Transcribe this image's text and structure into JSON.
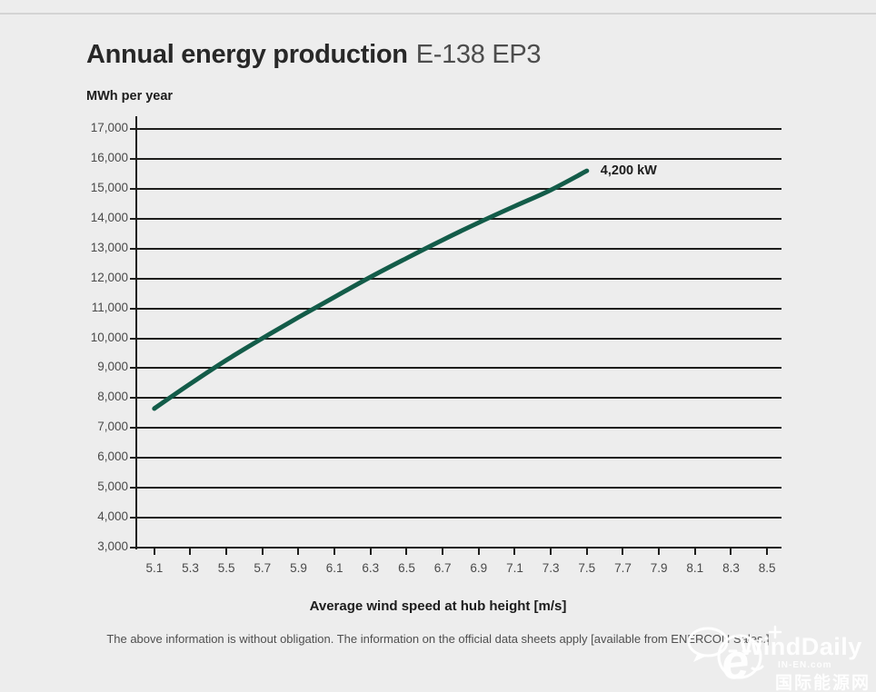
{
  "header": {
    "title_main": "Annual energy production",
    "title_model": "E-138 EP3"
  },
  "chart_data": {
    "type": "line",
    "title": "Annual energy production E-138 EP3",
    "ylabel": "MWh per year",
    "xlabel": "Average wind speed at hub height [m/s]",
    "x_ticks": [
      5.1,
      5.3,
      5.5,
      5.7,
      5.9,
      6.1,
      6.3,
      6.5,
      6.7,
      6.9,
      7.1,
      7.3,
      7.5,
      7.7,
      7.9,
      8.1,
      8.3,
      8.5
    ],
    "xlim": [
      5.0,
      8.58
    ],
    "ylim": [
      3000,
      17000
    ],
    "y_tick_step": 1000,
    "grid": true,
    "legend_position": "end-of-line",
    "series": [
      {
        "name": "4,200 kW",
        "x": [
          5.1,
          5.3,
          5.5,
          5.7,
          5.9,
          6.1,
          6.3,
          6.5,
          6.7,
          6.9,
          7.1,
          7.3,
          7.5
        ],
        "values": [
          7650,
          8480,
          9270,
          10000,
          10700,
          11380,
          12050,
          12680,
          13290,
          13870,
          14420,
          14960,
          15600
        ],
        "color": "#135C49"
      }
    ],
    "colors": {
      "background": "#EDEDED",
      "grid": "#1E1E1C",
      "tick_label": "#4A4A4A",
      "line": "#135C49"
    }
  },
  "footnote": "The above information is without obligation. The information on the official data sheets apply [available from ENERCON Sales.]",
  "watermark": {
    "brand": "WindDaily",
    "site": "IN-EN.com",
    "site_cn": "国际能源网",
    "logo": "chick-mascot-icon",
    "e_glyph": "e"
  }
}
